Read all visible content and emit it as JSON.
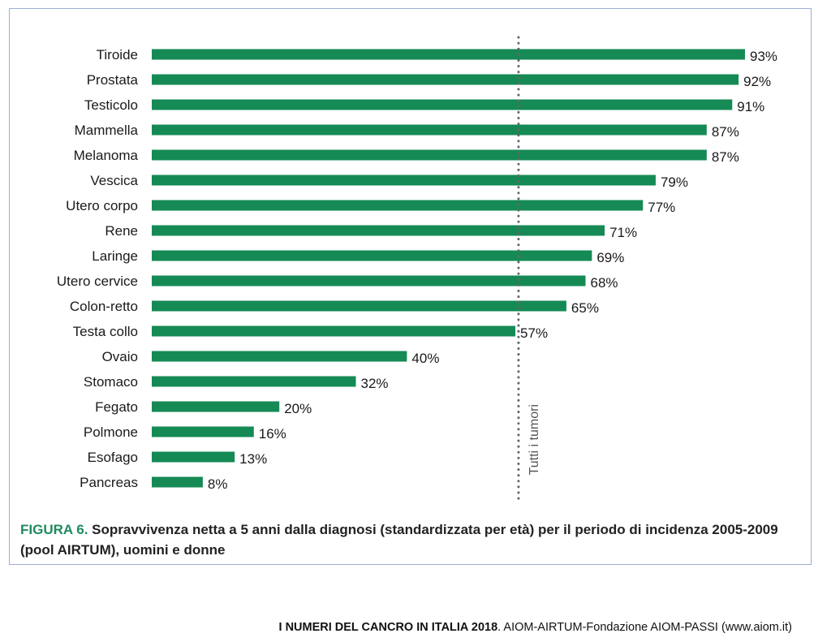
{
  "chart_data": {
    "type": "bar",
    "orientation": "horizontal",
    "categories": [
      "Tiroide",
      "Prostata",
      "Testicolo",
      "Mammella",
      "Melanoma",
      "Vescica",
      "Utero corpo",
      "Rene",
      "Laringe",
      "Utero cervice",
      "Colon-retto",
      "Testa collo",
      "Ovaio",
      "Stomaco",
      "Fegato",
      "Polmone",
      "Esofago",
      "Pancreas"
    ],
    "values": [
      93,
      92,
      91,
      87,
      87,
      79,
      77,
      71,
      69,
      68,
      65,
      57,
      40,
      32,
      20,
      16,
      13,
      8
    ],
    "value_labels": [
      "93%",
      "92%",
      "91%",
      "87%",
      "87%",
      "79%",
      "77%",
      "71%",
      "69%",
      "68%",
      "65%",
      "57%",
      "40%",
      "32%",
      "20%",
      "16%",
      "13%",
      "8%"
    ],
    "xlim": [
      0,
      100
    ],
    "bar_color": "#158a55",
    "grid": false,
    "reference_line": {
      "label": "Tutti i tumori",
      "value": 57.5
    }
  },
  "caption": {
    "lead": "FIGURA 6.",
    "text": "Sopravvivenza netta a 5 anni dalla diagnosi (standardizzata per età) per il periodo di incidenza 2005-2009 (pool AIRTUM), uomini e donne",
    "lead_color": "#1e8a5e"
  },
  "footer": {
    "title": "I NUMERI DEL CANCRO IN ITALIA 2018",
    "text": ". AIOM-AIRTUM-Fondazione AIOM-PASSI  (www.aiom.it)"
  }
}
